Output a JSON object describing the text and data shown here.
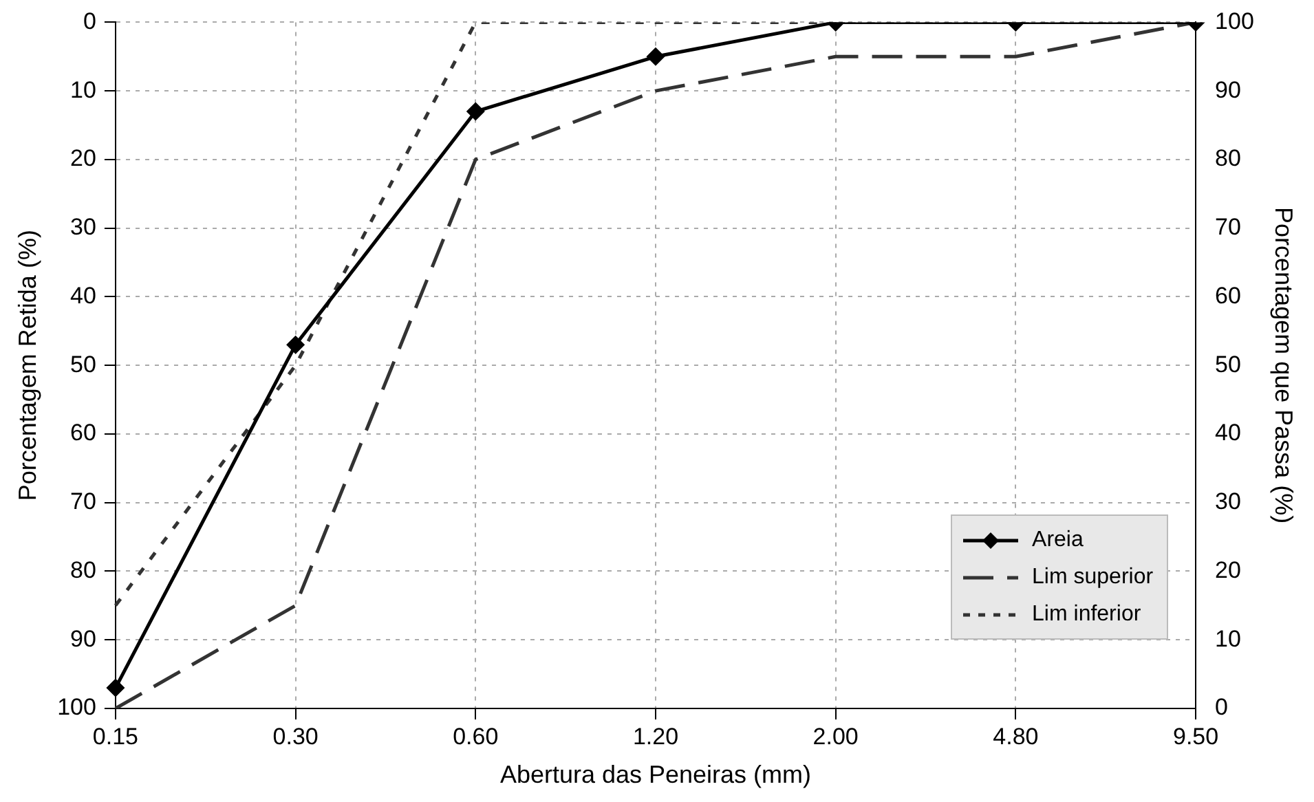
{
  "chart_data": {
    "type": "line",
    "xlabel": "Abertura das Peneiras (mm)",
    "ylabel": "Porcentagem Retida (%)",
    "y2label": "Porcentagem que Passa (%)",
    "categories": [
      "0.15",
      "0.30",
      "0.60",
      "1.20",
      "2.00",
      "4.80",
      "9.50"
    ],
    "series": [
      {
        "name": "Areia",
        "color": "#000000",
        "marker": "diamond",
        "line_style": "solid",
        "values": [
          97,
          47,
          13,
          5,
          0,
          0,
          0
        ]
      },
      {
        "name": "Lim superior",
        "color": "#333333",
        "marker": "none",
        "line_style": "dashed",
        "values": [
          100,
          85,
          20,
          10,
          5,
          5,
          0
        ]
      },
      {
        "name": "Lim inferior",
        "color": "#333333",
        "marker": "none",
        "line_style": "dotted",
        "values": [
          85,
          50,
          0,
          0,
          0,
          0,
          0
        ]
      }
    ],
    "ylim": [
      100,
      0
    ],
    "yticks": [
      0,
      10,
      20,
      30,
      40,
      50,
      60,
      70,
      80,
      90,
      100
    ],
    "y2lim": [
      0,
      100
    ],
    "y2ticks": [
      0,
      10,
      20,
      30,
      40,
      50,
      60,
      70,
      80,
      90,
      100
    ],
    "grid": true,
    "legend": "bottom right"
  }
}
